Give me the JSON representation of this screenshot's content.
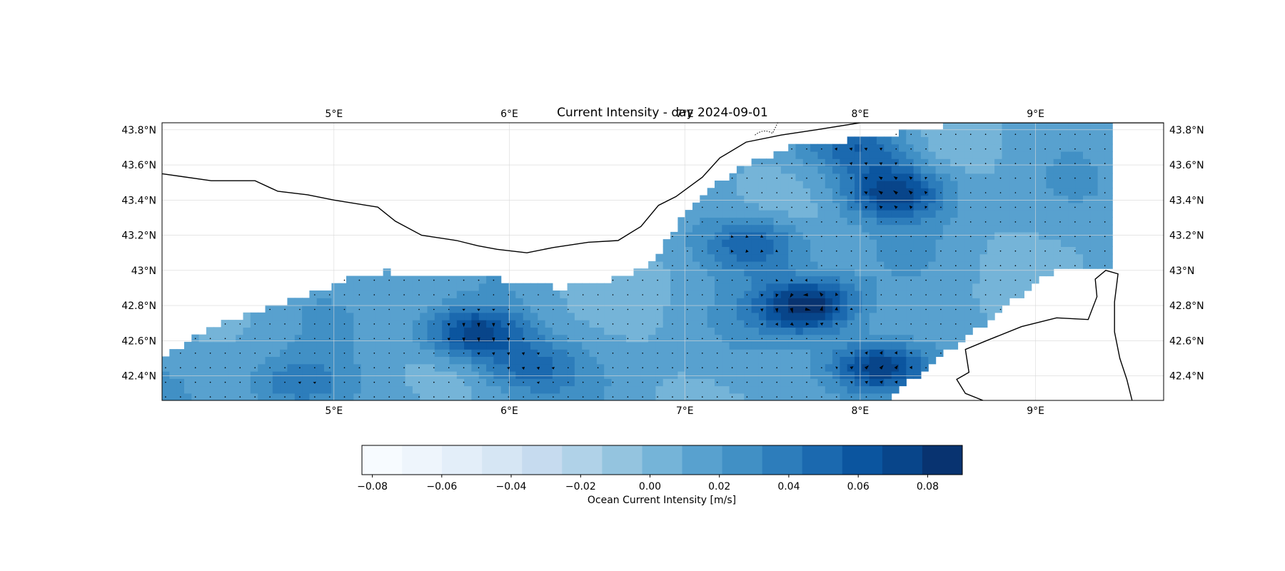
{
  "title": "Current Intensity - day 2024-09-01",
  "map": {
    "lon_range": [
      4.02,
      9.73
    ],
    "lat_range": [
      42.26,
      43.84
    ],
    "lon_ticks": [
      "5°E",
      "6°E",
      "7°E",
      "8°E",
      "9°E"
    ],
    "lon_tick_values": [
      5,
      6,
      7,
      8,
      9
    ],
    "lat_ticks": [
      "42.4°N",
      "42.6°N",
      "42.8°N",
      "43°N",
      "43.2°N",
      "43.4°N",
      "43.6°N",
      "43.8°N"
    ],
    "lat_tick_values": [
      42.4,
      42.6,
      42.8,
      43.0,
      43.2,
      43.4,
      43.6,
      43.8
    ],
    "gridlines": true,
    "coastline_color": "#000000",
    "background": "#ffffff"
  },
  "chart_data": {
    "type": "heatmap",
    "variable": "ocean current intensity with velocity arrows",
    "units": "m/s",
    "value_range": [
      -0.083,
      0.09
    ],
    "hotspots": [
      {
        "lon": 7.7,
        "lat": 42.8,
        "value": 0.088
      },
      {
        "lon": 8.1,
        "lat": 42.45,
        "value": 0.085
      },
      {
        "lon": 8.2,
        "lat": 43.45,
        "value": 0.075
      },
      {
        "lon": 5.8,
        "lat": 42.65,
        "value": 0.078
      },
      {
        "lon": 7.4,
        "lat": 43.15,
        "value": 0.06
      },
      {
        "lon": 8.0,
        "lat": 43.7,
        "value": 0.05
      },
      {
        "lon": 4.8,
        "lat": 42.35,
        "value": 0.045
      },
      {
        "lon": 6.1,
        "lat": 42.45,
        "value": 0.045
      }
    ]
  },
  "colorbar": {
    "label": "Ocean Current Intensity [m/s]",
    "tick_labels": [
      "−0.08",
      "−0.06",
      "−0.04",
      "−0.02",
      "0.00",
      "0.02",
      "0.04",
      "0.06",
      "0.08"
    ],
    "tick_values": [
      -0.08,
      -0.06,
      -0.04,
      -0.02,
      0.0,
      0.02,
      0.04,
      0.06,
      0.08
    ],
    "range": [
      -0.083,
      0.09
    ],
    "colors": [
      "#f7fbff",
      "#eef5fc",
      "#e3eef9",
      "#d6e6f4",
      "#c6dbef",
      "#b0d2e8",
      "#94c4df",
      "#75b4d8",
      "#58a1cf",
      "#4190c5",
      "#2d7dbb",
      "#1b69af",
      "#0b559f",
      "#08458a",
      "#083370"
    ]
  }
}
